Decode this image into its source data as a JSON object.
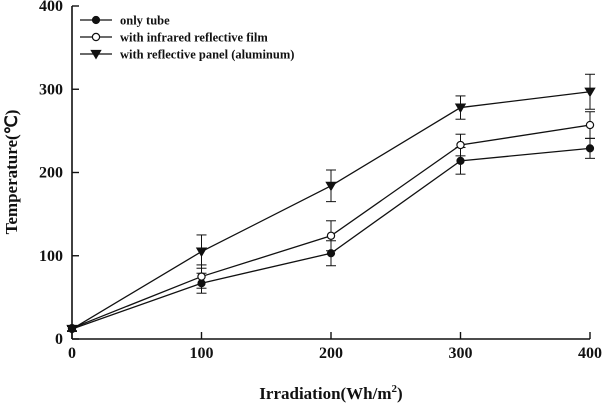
{
  "chart_data": {
    "type": "line",
    "title": "",
    "xlabel": "Irradiation(Wh/m",
    "xlabel_sup": "2",
    "xlabel_end": ")",
    "ylabel": "Temperature(℃)",
    "x": [
      0,
      100,
      200,
      300,
      400
    ],
    "xlim": [
      0,
      400
    ],
    "ylim": [
      0,
      400
    ],
    "xticks": [
      0,
      100,
      200,
      300,
      400
    ],
    "yticks": [
      0,
      100,
      200,
      300,
      400
    ],
    "legend_position": "top-left",
    "series": [
      {
        "name": "only tube",
        "marker": "filled-circle",
        "values": [
          12,
          67,
          103,
          214,
          229
        ],
        "errors": [
          3,
          12,
          15,
          16,
          12
        ]
      },
      {
        "name": "with infrared reflective film",
        "marker": "open-circle",
        "values": [
          13,
          75,
          124,
          233,
          257
        ],
        "errors": [
          3,
          14,
          18,
          13,
          16
        ]
      },
      {
        "name": "with reflective panel (aluminum)",
        "marker": "filled-triangle-down",
        "values": [
          12,
          105,
          184,
          278,
          297
        ],
        "errors": [
          3,
          20,
          19,
          14,
          21
        ]
      }
    ]
  }
}
